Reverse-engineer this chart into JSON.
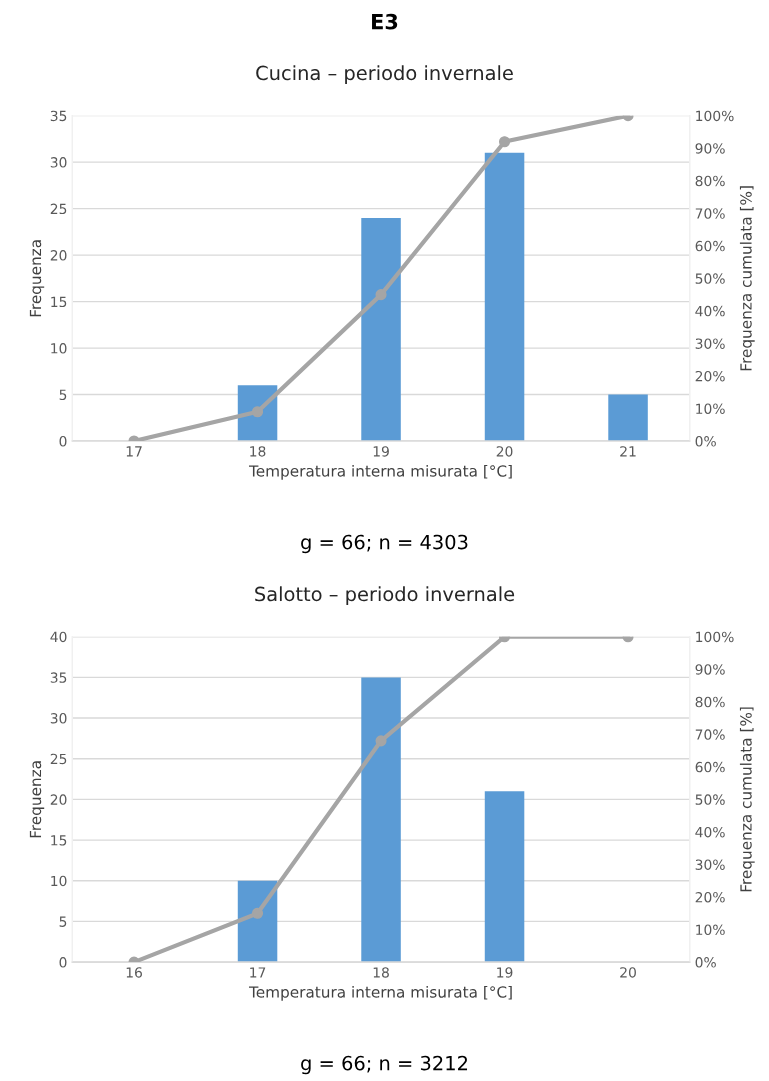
{
  "chart_data": [
    {
      "type": "bar",
      "title": "E3",
      "subtitle": "Cucina – periodo invernale",
      "xlabel": "Temperatura interna misurata [°C]",
      "ylabel": "Frequenza",
      "y2label": "Frequenza cumulata [%]",
      "categories": [
        "17",
        "18",
        "19",
        "20",
        "21"
      ],
      "series": [
        {
          "color": "#5b9bd5",
          "values": [
            0,
            6,
            24,
            31,
            5
          ]
        },
        {
          "type": "line",
          "axis": "y2",
          "color": "#a5a5a5",
          "marker": "circle",
          "values": [
            0,
            9,
            45,
            92,
            100
          ]
        }
      ],
      "ylim": [
        0,
        35
      ],
      "yticks": [
        0,
        5,
        10,
        15,
        20,
        25,
        30,
        35
      ],
      "y2lim": [
        0,
        100
      ],
      "y2ticks": [
        {
          "value": 0,
          "label": "0%"
        },
        {
          "value": 10,
          "label": "10%"
        },
        {
          "value": 20,
          "label": "20%"
        },
        {
          "value": 30,
          "label": "30%"
        },
        {
          "value": 40,
          "label": "40%"
        },
        {
          "value": 50,
          "label": "50%"
        },
        {
          "value": 60,
          "label": "60%"
        },
        {
          "value": 70,
          "label": "70%"
        },
        {
          "value": 80,
          "label": "80%"
        },
        {
          "value": 90,
          "label": "90%"
        },
        {
          "value": 100,
          "label": "100%"
        }
      ],
      "grid": "y",
      "legend": false,
      "annotations": [
        "g = 66; n = 4303"
      ]
    },
    {
      "type": "bar",
      "title": "Salotto – periodo invernale",
      "xlabel": "Temperatura interna misurata [°C]",
      "ylabel": "Frequenza",
      "y2label": "Frequenza cumulata [%]",
      "categories": [
        "16",
        "17",
        "18",
        "19",
        "20"
      ],
      "series": [
        {
          "color": "#5b9bd5",
          "values": [
            0,
            10,
            35,
            21,
            0
          ]
        },
        {
          "type": "line",
          "axis": "y2",
          "color": "#a5a5a5",
          "marker": "circle",
          "values": [
            0,
            15,
            68,
            100,
            100
          ]
        }
      ],
      "ylim": [
        0,
        40
      ],
      "yticks": [
        0,
        5,
        10,
        15,
        20,
        25,
        30,
        35,
        40
      ],
      "y2lim": [
        0,
        100
      ],
      "y2ticks": [
        {
          "value": 0,
          "label": "0%"
        },
        {
          "value": 10,
          "label": "10%"
        },
        {
          "value": 20,
          "label": "20%"
        },
        {
          "value": 30,
          "label": "30%"
        },
        {
          "value": 40,
          "label": "40%"
        },
        {
          "value": 50,
          "label": "50%"
        },
        {
          "value": 60,
          "label": "60%"
        },
        {
          "value": 70,
          "label": "70%"
        },
        {
          "value": 80,
          "label": "80%"
        },
        {
          "value": 90,
          "label": "90%"
        },
        {
          "value": 100,
          "label": "100%"
        }
      ],
      "grid": "y",
      "legend": false,
      "annotations": [
        "g = 66; n = 3212"
      ]
    }
  ]
}
